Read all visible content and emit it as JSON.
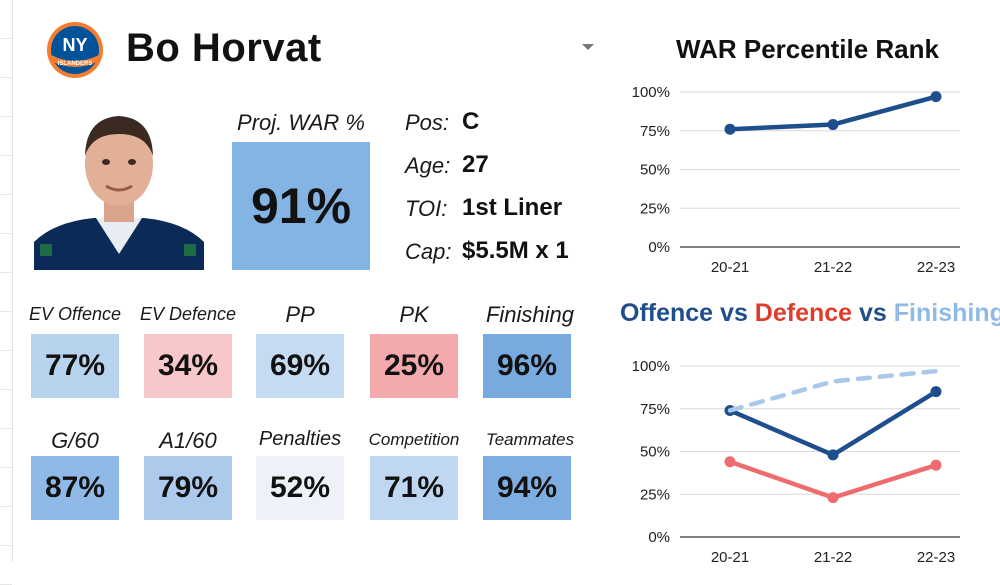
{
  "header": {
    "player_name": "Bo Horvat",
    "team_logo_icon": "ny-islanders-logo-icon",
    "team_logo_text": "NY",
    "team_logo_subtext": "ISLANDERS"
  },
  "profile": {
    "photo_icon": "player-headshot-icon",
    "war_label": "Proj. WAR %",
    "war_value": "91%",
    "info": [
      {
        "label": "Pos:",
        "value": "C"
      },
      {
        "label": "Age:",
        "value": "27"
      },
      {
        "label": "TOI:",
        "value": "1st Liner"
      },
      {
        "label": "Cap:",
        "value": "$5.5M x 1"
      }
    ]
  },
  "stats_row1": [
    {
      "label": "EV Offence",
      "value": "77%",
      "color": "#b7d3ee"
    },
    {
      "label": "EV Defence",
      "value": "34%",
      "color": "#f7c7c9"
    },
    {
      "label": "PP",
      "value": "69%",
      "color": "#c5dbf1"
    },
    {
      "label": "PK",
      "value": "25%",
      "color": "#f4a9ad"
    },
    {
      "label": "Finishing",
      "value": "96%",
      "color": "#78a9df"
    }
  ],
  "stats_row2": [
    {
      "label": "G/60",
      "value": "87%",
      "color": "#8fb9e6"
    },
    {
      "label": "A1/60",
      "value": "79%",
      "color": "#abcaec"
    },
    {
      "label": "Penalties",
      "value": "52%",
      "color": "#eef2f8"
    },
    {
      "label": "Competition",
      "value": "71%",
      "color": "#bfd7f0"
    },
    {
      "label": "Teammates",
      "value": "94%",
      "color": "#7eade1"
    }
  ],
  "chart_data": [
    {
      "type": "line",
      "title": "WAR Percentile Rank",
      "categories": [
        "20-21",
        "21-22",
        "22-23"
      ],
      "ylim": [
        0,
        100
      ],
      "yticks": [
        "0%",
        "25%",
        "50%",
        "75%",
        "100%"
      ],
      "grid": true,
      "series": [
        {
          "values": [
            76,
            79,
            97
          ],
          "color": "#1f4e8c",
          "dash": false
        }
      ]
    },
    {
      "type": "line",
      "title_parts": [
        {
          "text": "Offence",
          "color": "#1f4e8c"
        },
        {
          "text": " vs ",
          "color": "#1f4e8c"
        },
        {
          "text": "Defence",
          "color": "#e03c2e"
        },
        {
          "text": " vs ",
          "color": "#1f4e8c"
        },
        {
          "text": "Finishing",
          "color": "#8fb9e6"
        }
      ],
      "categories": [
        "20-21",
        "21-22",
        "22-23"
      ],
      "ylim": [
        0,
        100
      ],
      "yticks": [
        "0%",
        "25%",
        "50%",
        "75%",
        "100%"
      ],
      "grid": true,
      "series": [
        {
          "values": [
            74,
            48,
            85
          ],
          "color": "#1f4e8c",
          "dash": false
        },
        {
          "values": [
            44,
            23,
            42
          ],
          "color": "#ee6b6e",
          "dash": false
        },
        {
          "values": [
            74,
            91,
            97
          ],
          "color": "#a9c8ea",
          "dash": true
        }
      ]
    }
  ]
}
